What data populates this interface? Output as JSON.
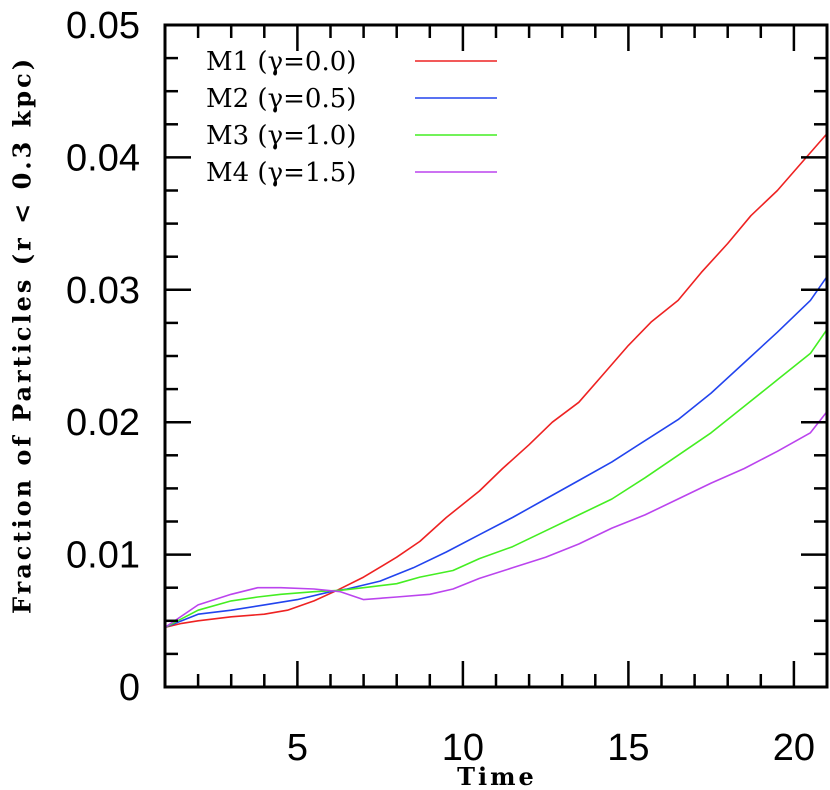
{
  "chart_data": {
    "type": "line",
    "xlabel": "Time",
    "ylabel": "Fraction of Particles (r < 0.3 kpc)",
    "xlim": [
      1,
      21
    ],
    "ylim": [
      0,
      0.05
    ],
    "xticks": [
      {
        "value": 5,
        "label": "5"
      },
      {
        "value": 10,
        "label": "10"
      },
      {
        "value": 15,
        "label": "15"
      },
      {
        "value": 20,
        "label": "20"
      }
    ],
    "yticks": [
      {
        "value": 0,
        "label": "0"
      },
      {
        "value": 0.01,
        "label": "0.01"
      },
      {
        "value": 0.02,
        "label": "0.02"
      },
      {
        "value": 0.03,
        "label": "0.03"
      },
      {
        "value": 0.04,
        "label": "0.04"
      },
      {
        "value": 0.05,
        "label": "0.05"
      }
    ],
    "legend_position": "top-left",
    "series": [
      {
        "name": "M1 (γ=0.0)",
        "color": "#ee2222",
        "x": [
          1,
          1.5,
          2,
          3,
          4,
          4.7,
          5.5,
          6.2,
          7,
          8,
          8.7,
          9.5,
          10.5,
          11.2,
          12,
          12.7,
          13.5,
          14.2,
          15,
          15.7,
          16.5,
          17.2,
          18,
          18.7,
          19.5,
          20.2,
          21
        ],
        "y": [
          0.0045,
          0.0048,
          0.005,
          0.0053,
          0.0055,
          0.0058,
          0.0065,
          0.0073,
          0.0083,
          0.0098,
          0.011,
          0.0128,
          0.0148,
          0.0165,
          0.0183,
          0.02,
          0.0215,
          0.0235,
          0.0258,
          0.0276,
          0.0292,
          0.0313,
          0.0335,
          0.0356,
          0.0375,
          0.0395,
          0.0418
        ]
      },
      {
        "name": "M2 (γ=0.5)",
        "color": "#2244ee",
        "x": [
          1,
          2,
          3,
          4,
          5,
          6,
          6.5,
          7.5,
          8.5,
          9.5,
          10.5,
          11.5,
          12.5,
          13.5,
          14.5,
          15.5,
          16.5,
          17.5,
          18.5,
          19.5,
          20.5,
          21
        ],
        "y": [
          0.0045,
          0.0055,
          0.0058,
          0.0062,
          0.0066,
          0.0072,
          0.0074,
          0.008,
          0.009,
          0.0102,
          0.0115,
          0.0128,
          0.0142,
          0.0156,
          0.017,
          0.0186,
          0.0202,
          0.0222,
          0.0245,
          0.0268,
          0.0292,
          0.031
        ]
      },
      {
        "name": "M3 (γ=1.0)",
        "color": "#44ee22",
        "x": [
          1,
          2,
          3,
          3.8,
          4.5,
          5.5,
          6.3,
          7,
          8,
          8.7,
          9.7,
          10.5,
          11.5,
          12.5,
          13.5,
          14.5,
          15.5,
          16.5,
          17.5,
          18.5,
          19.5,
          20.5,
          21
        ],
        "y": [
          0.0045,
          0.0058,
          0.0065,
          0.0068,
          0.007,
          0.0072,
          0.0073,
          0.0075,
          0.0078,
          0.0083,
          0.0088,
          0.0097,
          0.0106,
          0.0118,
          0.013,
          0.0142,
          0.0158,
          0.0175,
          0.0192,
          0.0212,
          0.0232,
          0.0252,
          0.027
        ]
      },
      {
        "name": "M4 (γ=1.5)",
        "color": "#bb44ee",
        "x": [
          1,
          2,
          3,
          3.8,
          4.5,
          5.5,
          6.3,
          7,
          8,
          9,
          9.7,
          10.5,
          11.5,
          12.5,
          13.5,
          14.5,
          15.5,
          16.5,
          17.5,
          18.5,
          19.5,
          20.5,
          21
        ],
        "y": [
          0.0045,
          0.0062,
          0.007,
          0.0075,
          0.0075,
          0.0074,
          0.0072,
          0.0066,
          0.0068,
          0.007,
          0.0074,
          0.0082,
          0.009,
          0.0098,
          0.0108,
          0.012,
          0.013,
          0.0142,
          0.0154,
          0.0165,
          0.0178,
          0.0192,
          0.0208
        ]
      }
    ]
  }
}
